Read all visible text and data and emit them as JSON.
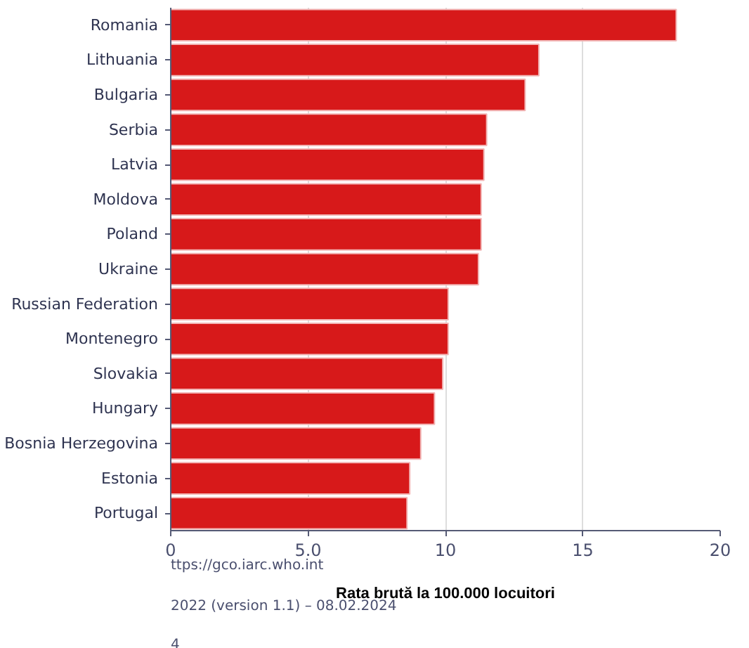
{
  "chart_data": {
    "type": "bar",
    "orientation": "horizontal",
    "categories": [
      "Romania",
      "Lithuania",
      "Bulgaria",
      "Serbia",
      "Latvia",
      "Moldova",
      "Poland",
      "Ukraine",
      "Russian Federation",
      "Montenegro",
      "Slovakia",
      "Hungary",
      "Bosnia Herzegovina",
      "Estonia",
      "Portugal"
    ],
    "values": [
      18.4,
      13.4,
      12.9,
      11.5,
      11.4,
      11.3,
      11.3,
      11.2,
      10.1,
      10.1,
      9.9,
      9.6,
      9.1,
      8.7,
      8.6
    ],
    "color": "#d7191a",
    "xlabel": "Rata brută la 100.000 locuitori",
    "xlim": [
      0,
      20
    ],
    "xticks": [
      0,
      {
        "value": 5,
        "label": "5.0"
      },
      10,
      15,
      20
    ],
    "grid": "x",
    "annotations": [
      "ttps://gco.iarc.who.int",
      "2022 (version 1.1) – 08.02.2024",
      "4"
    ]
  }
}
